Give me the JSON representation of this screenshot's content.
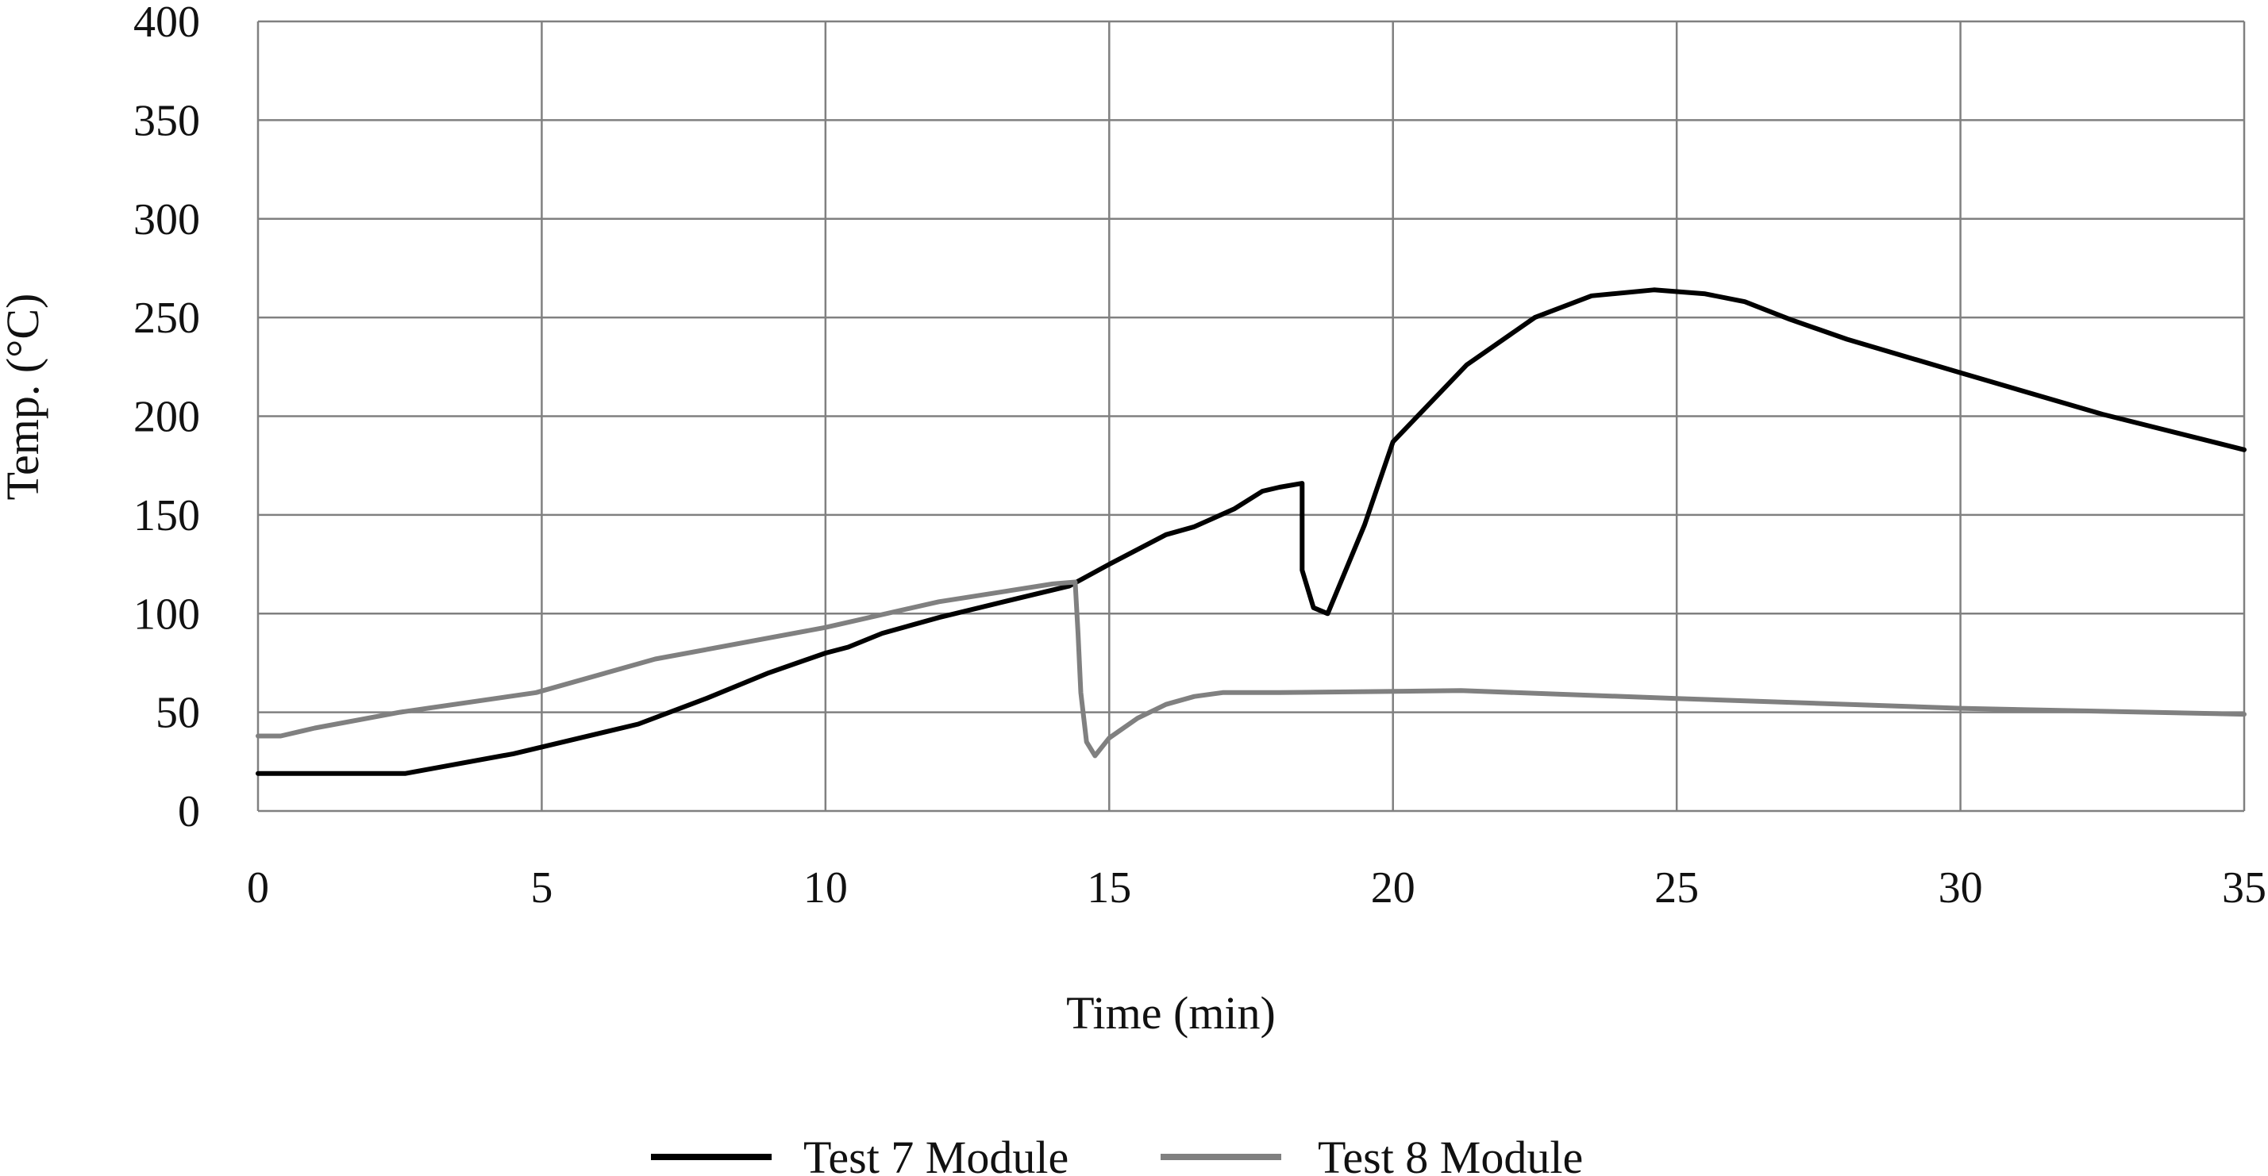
{
  "chart_data": {
    "type": "line",
    "title": "",
    "xlabel": "Time (min)",
    "ylabel": "Temp. (°C)",
    "xlim": [
      0,
      35
    ],
    "ylim": [
      0,
      400
    ],
    "xticks": [
      0,
      5,
      10,
      15,
      20,
      25,
      30,
      35
    ],
    "yticks": [
      0,
      50,
      100,
      150,
      200,
      250,
      300,
      350,
      400
    ],
    "grid": true,
    "legend_position": "bottom-center",
    "series": [
      {
        "name": "Test 7 Module",
        "color": "#000000",
        "points": [
          [
            0,
            19
          ],
          [
            2.6,
            19
          ],
          [
            4.5,
            29
          ],
          [
            6.7,
            44
          ],
          [
            7.9,
            57
          ],
          [
            9.0,
            70
          ],
          [
            10.0,
            80
          ],
          [
            10.4,
            83
          ],
          [
            11.0,
            90
          ],
          [
            12.0,
            98
          ],
          [
            13.0,
            105
          ],
          [
            14.3,
            114
          ],
          [
            15.0,
            125
          ],
          [
            16.0,
            140
          ],
          [
            16.5,
            144
          ],
          [
            17.2,
            153
          ],
          [
            17.7,
            162
          ],
          [
            18.0,
            164
          ],
          [
            18.4,
            166
          ],
          [
            18.4,
            122
          ],
          [
            18.6,
            103
          ],
          [
            18.85,
            100
          ],
          [
            19.5,
            145
          ],
          [
            20.0,
            187
          ],
          [
            21.3,
            226
          ],
          [
            22.5,
            250
          ],
          [
            23.5,
            261
          ],
          [
            24.6,
            264
          ],
          [
            25.5,
            262
          ],
          [
            26.2,
            258
          ],
          [
            27.0,
            249
          ],
          [
            28.0,
            239
          ],
          [
            30.0,
            222
          ],
          [
            32.5,
            201
          ],
          [
            35.0,
            183
          ]
        ]
      },
      {
        "name": "Test 8 Module",
        "color": "#808080",
        "points": [
          [
            0,
            38
          ],
          [
            0.4,
            38
          ],
          [
            1.0,
            42
          ],
          [
            2.5,
            50
          ],
          [
            4.9,
            60
          ],
          [
            7.0,
            77
          ],
          [
            10.0,
            93
          ],
          [
            12.0,
            106
          ],
          [
            14.0,
            115
          ],
          [
            14.4,
            116
          ],
          [
            14.45,
            90
          ],
          [
            14.5,
            60
          ],
          [
            14.6,
            35
          ],
          [
            14.75,
            28
          ],
          [
            15.0,
            37
          ],
          [
            15.5,
            47
          ],
          [
            16.0,
            54
          ],
          [
            16.5,
            58
          ],
          [
            17.0,
            60
          ],
          [
            18.0,
            60
          ],
          [
            21.2,
            61
          ],
          [
            25.0,
            57
          ],
          [
            30.0,
            52
          ],
          [
            35.0,
            49
          ]
        ]
      }
    ]
  }
}
